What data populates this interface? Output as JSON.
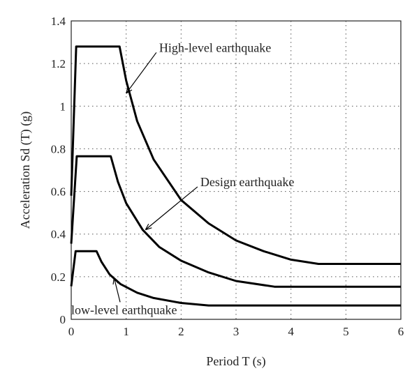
{
  "chart_data": {
    "type": "line",
    "xlabel": "Period T (s)",
    "ylabel": "Acceleration Sd (T) (g)",
    "xlim": [
      0,
      6
    ],
    "ylim": [
      0,
      1.4
    ],
    "xticks": [
      0,
      1,
      2,
      3,
      4,
      5,
      6
    ],
    "xtick_labels": [
      "0",
      "1",
      "2",
      "3",
      "4",
      "5",
      "6"
    ],
    "yticks": [
      0,
      0.2,
      0.4,
      0.6,
      0.8,
      1.0,
      1.2,
      1.4
    ],
    "ytick_labels": [
      "0",
      "0.2",
      "0.4",
      "0.6",
      "0.8",
      "1",
      "1.2",
      "1.4"
    ],
    "grid": true,
    "series": [
      {
        "name": "High-level earthquake",
        "x": [
          0,
          0.09,
          0.88,
          1.0,
          1.2,
          1.5,
          2.0,
          2.5,
          3.0,
          3.5,
          4.0,
          4.5,
          6.0
        ],
        "y": [
          0.58,
          1.28,
          1.28,
          1.12,
          0.93,
          0.75,
          0.56,
          0.45,
          0.37,
          0.32,
          0.28,
          0.26,
          0.26
        ]
      },
      {
        "name": "Design earthquake",
        "x": [
          0,
          0.1,
          0.72,
          0.85,
          1.0,
          1.3,
          1.6,
          2.0,
          2.5,
          3.0,
          3.7,
          6.0
        ],
        "y": [
          0.355,
          0.765,
          0.765,
          0.645,
          0.545,
          0.42,
          0.34,
          0.275,
          0.22,
          0.18,
          0.153,
          0.153
        ]
      },
      {
        "name": "low-level earthquake",
        "x": [
          0,
          0.08,
          0.46,
          0.55,
          0.7,
          0.9,
          1.2,
          1.5,
          2.0,
          2.5,
          6.0
        ],
        "y": [
          0.155,
          0.32,
          0.32,
          0.27,
          0.21,
          0.165,
          0.125,
          0.1,
          0.077,
          0.065,
          0.065
        ]
      }
    ],
    "annotations": [
      {
        "text": "High-level earthquake",
        "x": 1.6,
        "y": 1.255,
        "arrow_to": [
          1.0,
          1.06
        ]
      },
      {
        "text": "Design earthquake",
        "x": 2.35,
        "y": 0.625,
        "arrow_to": [
          1.35,
          0.42
        ]
      },
      {
        "text": "low-level earthquake",
        "x": 0.0,
        "y": 0.025,
        "arrow_to": [
          0.78,
          0.195
        ]
      }
    ]
  }
}
